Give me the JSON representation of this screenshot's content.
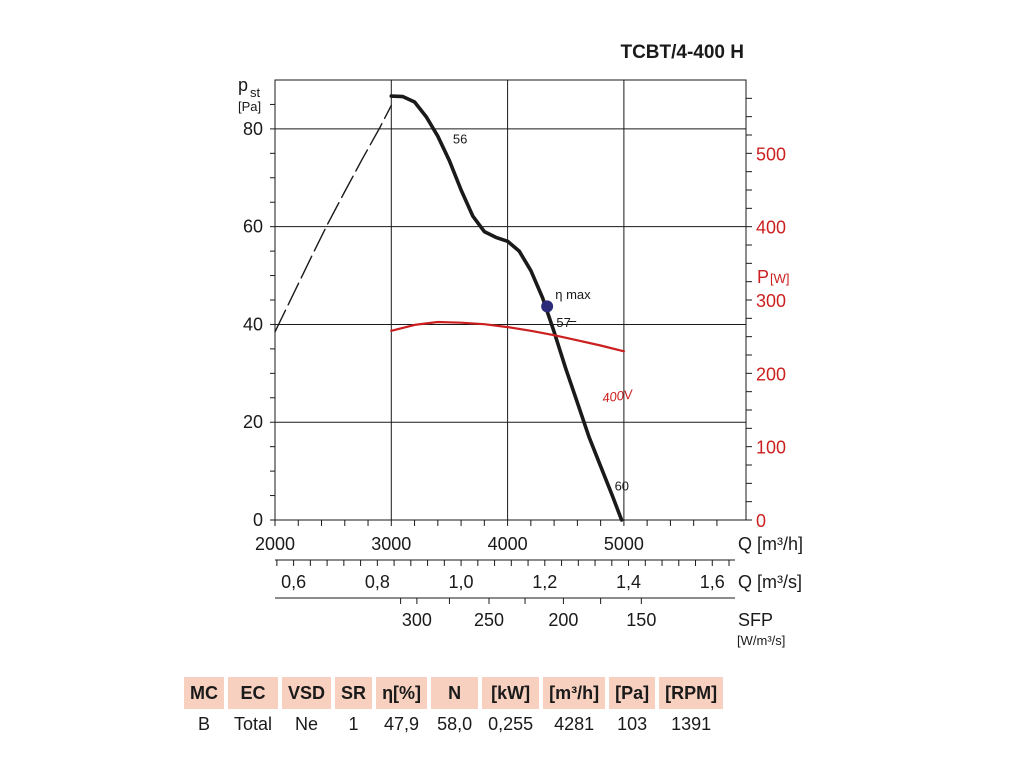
{
  "chart_data": {
    "type": "line",
    "title": "TCBT/4-400 H",
    "left_axis": {
      "label_main": "p",
      "label_sub": "st",
      "unit": "[Pa]",
      "range": [
        0,
        90
      ],
      "ticks": [
        "0",
        "20",
        "40",
        "60",
        "80"
      ],
      "tick_values": [
        0,
        20,
        40,
        60,
        80
      ]
    },
    "right_axis": {
      "label_main": "P",
      "unit": "[W]",
      "range": [
        0,
        600
      ],
      "ticks": [
        "0",
        "100",
        "200",
        "300",
        "400",
        "500"
      ],
      "tick_values": [
        0,
        100,
        200,
        300,
        400,
        500
      ],
      "color": "#cc1f1f"
    },
    "x_axis": {
      "label": "Q [m³/h]",
      "range": [
        2000,
        6050
      ],
      "ticks": [
        "2000",
        "3000",
        "4000",
        "5000"
      ],
      "tick_values": [
        2000,
        3000,
        4000,
        5000
      ]
    },
    "x_axis_2": {
      "label": "Q [m³/s]",
      "ticks": [
        "0,6",
        "0,8",
        "1,0",
        "1,2",
        "1,4",
        "1,6"
      ],
      "tick_values_m3h": [
        2160,
        2880,
        3600,
        4320,
        5040,
        5760
      ]
    },
    "x_axis_3": {
      "label": "SFP",
      "unit": "[W/m³/s]",
      "ticks": [
        "300",
        "250",
        "200",
        "150"
      ],
      "tick_values_m3h": [
        3220,
        3840,
        4480,
        5150
      ]
    },
    "grid": true,
    "series": [
      {
        "name": "",
        "axis": "left",
        "style": "dashed",
        "color": "#1a1a1a",
        "x": [
          2000,
          2150,
          2300,
          2450,
          2600,
          2750,
          2900,
          3000
        ],
        "y": [
          38.5,
          45.8,
          53.2,
          60.4,
          67.2,
          73.8,
          80.2,
          84.8
        ]
      },
      {
        "name": "",
        "axis": "left",
        "style": "solid",
        "color": "#1a1a1a",
        "x": [
          3000,
          3100,
          3200,
          3300,
          3400,
          3500,
          3600,
          3700,
          3800,
          3900,
          4000,
          4100,
          4200,
          4300,
          4400,
          4500,
          4600,
          4700,
          4800,
          4900,
          4980
        ],
        "y": [
          86.7,
          86.6,
          85.5,
          82.5,
          78.5,
          73.5,
          67.5,
          62.2,
          59.0,
          57.8,
          57.0,
          55.0,
          51.0,
          45.5,
          38.5,
          31.0,
          24.0,
          17.0,
          11.0,
          5.0,
          0
        ]
      },
      {
        "name": "400V",
        "axis": "right",
        "style": "solid",
        "color": "#cc1f1f",
        "x": [
          3000,
          3200,
          3400,
          3600,
          3800,
          4000,
          4200,
          4400,
          4600,
          4800,
          5000
        ],
        "y": [
          258,
          266,
          270,
          269,
          267,
          263,
          258,
          252,
          245,
          238,
          230
        ]
      }
    ],
    "annotations": [
      {
        "text": "56",
        "x": 3530,
        "y": 77
      },
      {
        "text": "η max",
        "x": 4410,
        "y": 45.2
      },
      {
        "text": "57",
        "x": 4420,
        "y": 39.5
      },
      {
        "text": "60",
        "x": 4920,
        "y": 6
      },
      {
        "text": "400V",
        "x": 4820,
        "y": 24
      }
    ],
    "marker": {
      "label": "η max",
      "x": 4340,
      "y": 43.7,
      "color": "#2b2b7a"
    }
  },
  "table": {
    "headers": [
      "MC",
      "EC",
      "VSD",
      "SR",
      "η[%]",
      "N",
      "[kW]",
      "[m³/h]",
      "[Pa]",
      "[RPM]"
    ],
    "row": [
      "B",
      "Total",
      "Ne",
      "1",
      "47,9",
      "58,0",
      "0,255",
      "4281",
      "103",
      "1391"
    ]
  }
}
